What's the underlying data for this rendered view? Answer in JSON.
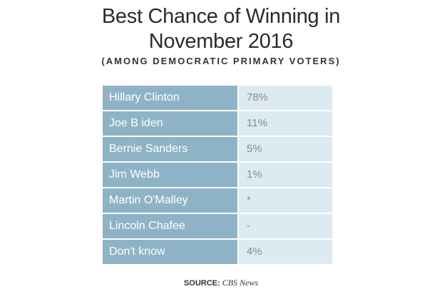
{
  "chart_data": {
    "type": "table",
    "title_line1": "Best Chance of Winning in",
    "title_line2": "November 2016",
    "subtitle": "(AMONG DEMOCRATIC PRIMARY VOTERS)",
    "rows": [
      {
        "name": "Hillary Clinton",
        "value": "78%"
      },
      {
        "name": "Joe B iden",
        "value": "11%"
      },
      {
        "name": "Bernie Sanders",
        "value": "5%"
      },
      {
        "name": "Jim Webb",
        "value": "1%"
      },
      {
        "name": "Martin O'Malley",
        "value": "*"
      },
      {
        "name": "Lincoln Chafee",
        "value": "-"
      },
      {
        "name": "Don't know",
        "value": "4%"
      }
    ],
    "colors": {
      "name_cell": "#8fb3c6",
      "value_cell": "#dcebf2"
    }
  },
  "source": {
    "label": "SOURCE:",
    "name": "CBS News"
  }
}
